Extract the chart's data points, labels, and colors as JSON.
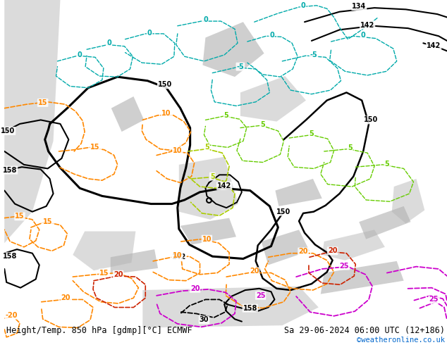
{
  "title_left": "Height/Temp. 850 hPa [gdmp][°C] ECMWF",
  "title_right": "Sa 29-06-2024 06:00 UTC (12+186)",
  "credit": "©weatheronline.co.uk",
  "land_color": "#c8e090",
  "sea_color": "#d0d0d0",
  "mountain_color": "#b0b0b0",
  "title_fontsize": 8.5,
  "credit_color": "#0066cc",
  "black_color": "#000000",
  "orange_color": "#ff8800",
  "green_color": "#66cc00",
  "cyan_color": "#00aaaa",
  "magenta_color": "#cc00cc",
  "red_color": "#cc2200",
  "fig_width": 6.34,
  "fig_height": 4.9,
  "dpi": 100
}
